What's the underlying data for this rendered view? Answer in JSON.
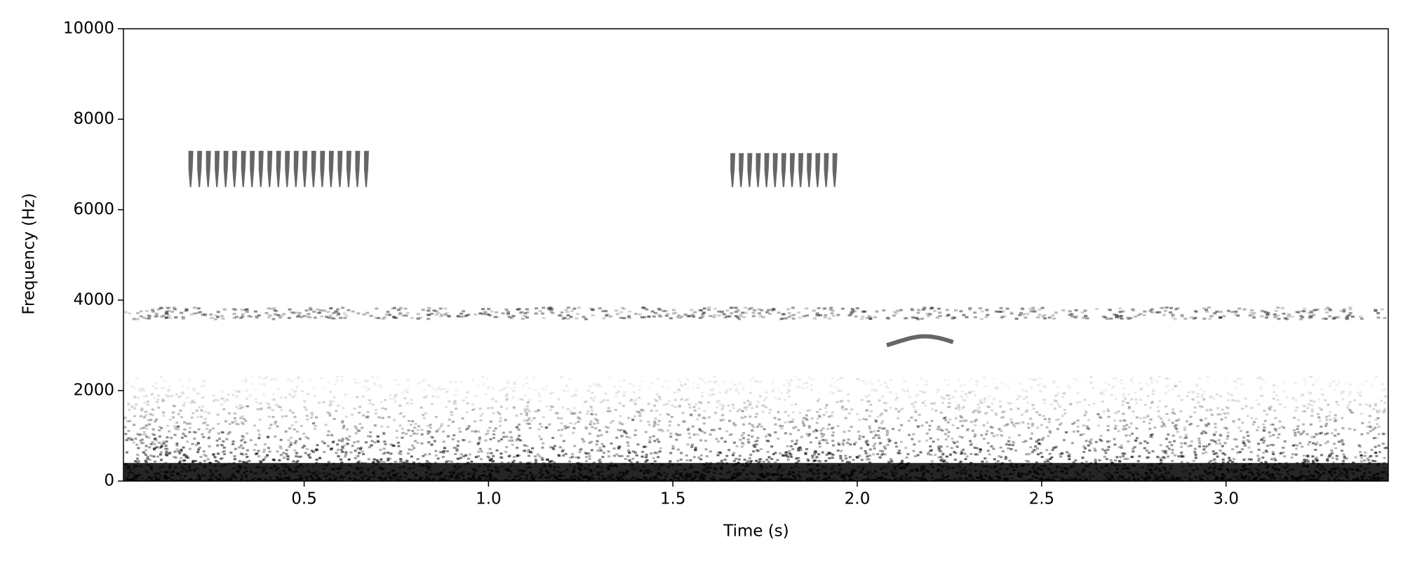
{
  "chart_data": {
    "type": "spectrogram",
    "xlabel": "Time (s)",
    "ylabel": "Frequency (Hz)",
    "xlim": [
      0.01,
      3.44
    ],
    "ylim": [
      0,
      10000
    ],
    "xticks": [
      0.5,
      {
        "value": 1,
        "label": "1.0"
      },
      1.5,
      {
        "value": 2,
        "label": "2.0"
      },
      2.5,
      {
        "value": 3,
        "label": "3.0"
      }
    ],
    "yticks": [
      0,
      2000,
      4000,
      6000,
      8000,
      10000
    ],
    "color": "#000000",
    "calls": [
      {
        "time": [
          0.18,
          0.68
        ],
        "freq": [
          6500,
          7300
        ],
        "pulses": 21
      },
      {
        "time": [
          1.65,
          1.95
        ],
        "freq": [
          6500,
          7250
        ],
        "pulses": 13
      }
    ],
    "tone": {
      "time": [
        0.01,
        3.44
      ],
      "freq": 3700
    },
    "chirp": {
      "time": [
        2.08,
        2.26
      ],
      "freq": [
        2950,
        3200
      ]
    },
    "noise": {
      "freq": [
        0,
        2000
      ],
      "dense_below": 400
    }
  }
}
